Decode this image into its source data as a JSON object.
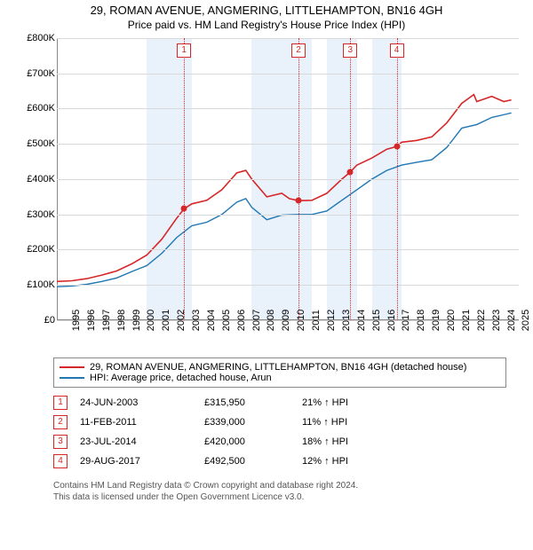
{
  "title": "29, ROMAN AVENUE, ANGMERING, LITTLEHAMPTON, BN16 4GH",
  "subtitle": "Price paid vs. HM Land Registry's House Price Index (HPI)",
  "chart": {
    "type": "line",
    "background_color": "#ffffff",
    "grid_color": "#d9d9d9",
    "axis_color": "#888888",
    "label_fontsize": 11,
    "x": {
      "min": 1995,
      "max": 2025.8,
      "ticks": [
        1995,
        1996,
        1997,
        1998,
        1999,
        2000,
        2001,
        2002,
        2003,
        2004,
        2005,
        2006,
        2007,
        2008,
        2009,
        2010,
        2011,
        2012,
        2013,
        2014,
        2015,
        2016,
        2017,
        2018,
        2019,
        2020,
        2021,
        2022,
        2023,
        2024,
        2025
      ]
    },
    "y": {
      "min": 0,
      "max": 800000,
      "ticks": [
        0,
        100000,
        200000,
        300000,
        400000,
        500000,
        600000,
        700000,
        800000
      ],
      "tick_labels": [
        "£0",
        "£100K",
        "£200K",
        "£300K",
        "£400K",
        "£500K",
        "£600K",
        "£700K",
        "£800K"
      ]
    },
    "bands": {
      "color": "#e9f1fb",
      "ranges": [
        [
          2001,
          2004
        ],
        [
          2008,
          2012
        ],
        [
          2013,
          2015
        ],
        [
          2016,
          2018
        ]
      ]
    },
    "series": [
      {
        "id": "property",
        "color": "#d62728",
        "width": 1.6,
        "points": [
          [
            1995,
            110000
          ],
          [
            1996,
            112000
          ],
          [
            1997,
            118000
          ],
          [
            1998,
            128000
          ],
          [
            1999,
            140000
          ],
          [
            2000,
            160000
          ],
          [
            2001,
            185000
          ],
          [
            2002,
            230000
          ],
          [
            2003,
            290000
          ],
          [
            2003.48,
            315950
          ],
          [
            2004,
            330000
          ],
          [
            2005,
            340000
          ],
          [
            2006,
            370000
          ],
          [
            2007,
            418000
          ],
          [
            2007.6,
            425000
          ],
          [
            2008,
            400000
          ],
          [
            2009,
            350000
          ],
          [
            2010,
            360000
          ],
          [
            2010.5,
            345000
          ],
          [
            2011.11,
            339000
          ],
          [
            2012,
            340000
          ],
          [
            2013,
            360000
          ],
          [
            2014,
            400000
          ],
          [
            2014.56,
            420000
          ],
          [
            2015,
            440000
          ],
          [
            2016,
            460000
          ],
          [
            2017,
            485000
          ],
          [
            2017.66,
            492500
          ],
          [
            2018,
            505000
          ],
          [
            2019,
            510000
          ],
          [
            2020,
            520000
          ],
          [
            2021,
            560000
          ],
          [
            2022,
            615000
          ],
          [
            2022.8,
            640000
          ],
          [
            2023,
            620000
          ],
          [
            2024,
            635000
          ],
          [
            2024.8,
            620000
          ],
          [
            2025.3,
            625000
          ]
        ]
      },
      {
        "id": "hpi",
        "color": "#1f77b4",
        "width": 1.4,
        "points": [
          [
            1995,
            95000
          ],
          [
            1996,
            97000
          ],
          [
            1997,
            102000
          ],
          [
            1998,
            110000
          ],
          [
            1999,
            120000
          ],
          [
            2000,
            138000
          ],
          [
            2001,
            155000
          ],
          [
            2002,
            190000
          ],
          [
            2003,
            235000
          ],
          [
            2004,
            268000
          ],
          [
            2005,
            278000
          ],
          [
            2006,
            300000
          ],
          [
            2007,
            335000
          ],
          [
            2007.6,
            345000
          ],
          [
            2008,
            320000
          ],
          [
            2009,
            285000
          ],
          [
            2010,
            298000
          ],
          [
            2011,
            300000
          ],
          [
            2012,
            300000
          ],
          [
            2013,
            310000
          ],
          [
            2014,
            340000
          ],
          [
            2015,
            370000
          ],
          [
            2016,
            400000
          ],
          [
            2017,
            425000
          ],
          [
            2018,
            440000
          ],
          [
            2019,
            448000
          ],
          [
            2020,
            455000
          ],
          [
            2021,
            490000
          ],
          [
            2022,
            545000
          ],
          [
            2023,
            555000
          ],
          [
            2024,
            575000
          ],
          [
            2025,
            585000
          ],
          [
            2025.3,
            588000
          ]
        ]
      }
    ],
    "event_lines": {
      "color": "#d62728",
      "events": [
        {
          "n": "1",
          "x": 2003.48,
          "y": 315950
        },
        {
          "n": "2",
          "x": 2011.11,
          "y": 339000
        },
        {
          "n": "3",
          "x": 2014.56,
          "y": 420000
        },
        {
          "n": "4",
          "x": 2017.66,
          "y": 492500
        }
      ],
      "dot_color": "#d62728"
    }
  },
  "legend": {
    "items": [
      {
        "color": "#d62728",
        "label": "29, ROMAN AVENUE, ANGMERING, LITTLEHAMPTON, BN16 4GH (detached house)"
      },
      {
        "color": "#1f77b4",
        "label": "HPI: Average price, detached house, Arun"
      }
    ]
  },
  "transactions": {
    "marker_color": "#d62728",
    "rows": [
      {
        "n": "1",
        "date": "24-JUN-2003",
        "price": "£315,950",
        "pct": "21% ↑ HPI"
      },
      {
        "n": "2",
        "date": "11-FEB-2011",
        "price": "£339,000",
        "pct": "11% ↑ HPI"
      },
      {
        "n": "3",
        "date": "23-JUL-2014",
        "price": "£420,000",
        "pct": "18% ↑ HPI"
      },
      {
        "n": "4",
        "date": "29-AUG-2017",
        "price": "£492,500",
        "pct": "12% ↑ HPI"
      }
    ]
  },
  "footer_line1": "Contains HM Land Registry data © Crown copyright and database right 2024.",
  "footer_line2": "This data is licensed under the Open Government Licence v3.0."
}
